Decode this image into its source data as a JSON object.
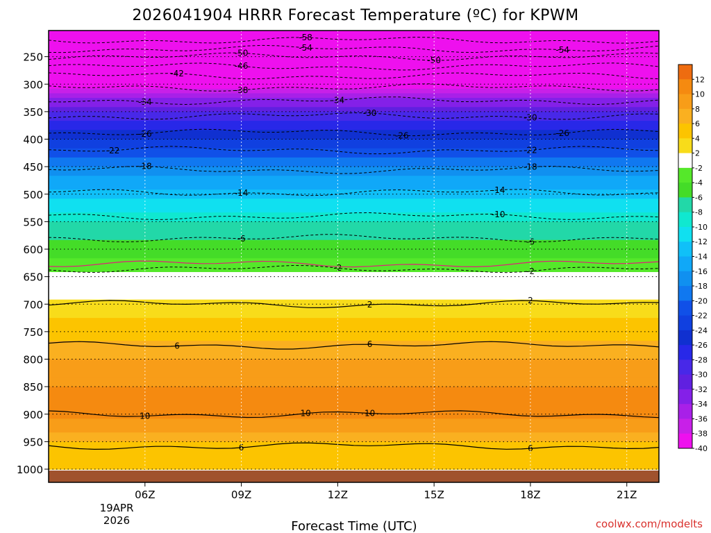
{
  "chart_data": {
    "type": "heatmap",
    "title": "2026041904 HRRR Forecast Temperature (ºC) for KPWM",
    "xlabel": "Forecast Time (UTC)",
    "credit": "coolwx.com/modelts",
    "x_ticks": [
      "06Z",
      "09Z",
      "12Z",
      "15Z",
      "18Z",
      "21Z"
    ],
    "x_tick_hours": [
      6,
      9,
      12,
      15,
      18,
      21
    ],
    "x_range_hours": [
      3.0,
      22.0
    ],
    "date_label": [
      "19APR",
      "2026"
    ],
    "y_ticks": [
      250,
      300,
      350,
      400,
      450,
      500,
      550,
      600,
      650,
      700,
      750,
      800,
      850,
      900,
      950,
      1000
    ],
    "y_range_hPa": [
      200,
      1025
    ],
    "ground_color": "#a0522d",
    "colorbar": {
      "levels": [
        14,
        12,
        10,
        8,
        6,
        4,
        2,
        -2,
        -4,
        -6,
        -8,
        -10,
        -12,
        -14,
        -16,
        -18,
        -20,
        -22,
        -24,
        -26,
        -28,
        -30,
        -32,
        -34,
        -36,
        -38,
        -40
      ],
      "labels": [
        "12",
        "10",
        "8",
        "6",
        "4",
        "2",
        "-2",
        "-4",
        "-6",
        "-8",
        "-10",
        "-12",
        "-14",
        "-16",
        "-18",
        "-20",
        "-22",
        "-24",
        "-26",
        "-28",
        "-30",
        "-32",
        "-34",
        "-36",
        "-38",
        "-40"
      ],
      "colors": [
        "#ee6c10",
        "#f58a10",
        "#f89d18",
        "#fab020",
        "#fcc400",
        "#f8dc1a",
        "#ffffff",
        "#55e82a",
        "#44dc28",
        "#22d8a8",
        "#10e8d0",
        "#10e0f0",
        "#10c0f8",
        "#10a8f8",
        "#1090f0",
        "#1078f0",
        "#1050e8",
        "#1040e0",
        "#1030d0",
        "#2828e8",
        "#4828e8",
        "#6020e0",
        "#8420e8",
        "#a820e8",
        "#c820e8",
        "#ee10ee"
      ]
    },
    "temperature_layers": [
      {
        "p": 200,
        "t": -62
      },
      {
        "p": 250,
        "t": -50
      },
      {
        "p": 300,
        "t": -39
      },
      {
        "p": 350,
        "t": -30
      },
      {
        "p": 400,
        "t": -24
      },
      {
        "p": 450,
        "t": -18
      },
      {
        "p": 500,
        "t": -13
      },
      {
        "p": 550,
        "t": -8
      },
      {
        "p": 600,
        "t": -5
      },
      {
        "p": 650,
        "t": -1
      },
      {
        "p": 700,
        "t": 3
      },
      {
        "p": 750,
        "t": 5
      },
      {
        "p": 800,
        "t": 8
      },
      {
        "p": 850,
        "t": 10
      },
      {
        "p": 900,
        "t": 11
      },
      {
        "p": 950,
        "t": 6
      },
      {
        "p": 1000,
        "t": 5
      }
    ],
    "contours": [
      {
        "value": -58,
        "label": "-58",
        "p": 220,
        "style": "dashed",
        "color": "#000000",
        "label_hours": [
          11.0
        ]
      },
      {
        "value": -54,
        "label": "-54",
        "p": 236,
        "style": "dashed",
        "color": "#000000",
        "label_hours": [
          11.0,
          19.0
        ]
      },
      {
        "value": -50,
        "label": "-50",
        "p": 250,
        "style": "dashed",
        "color": "#000000",
        "label_hours": [
          9.0,
          15.0
        ]
      },
      {
        "value": -46,
        "label": "-46",
        "p": 268,
        "style": "dashed",
        "color": "#000000",
        "label_hours": [
          9.0
        ]
      },
      {
        "value": -42,
        "label": "-42",
        "p": 285,
        "style": "dashed",
        "color": "#000000",
        "label_hours": [
          7.0
        ]
      },
      {
        "value": -38,
        "label": "-38",
        "p": 306,
        "style": "dashed",
        "color": "#000000",
        "label_hours": [
          9.0
        ]
      },
      {
        "value": -34,
        "label": "-34",
        "p": 330,
        "style": "dashed",
        "color": "#000000",
        "label_hours": [
          6.0,
          12.0
        ]
      },
      {
        "value": -30,
        "label": "-30",
        "p": 358,
        "style": "dashed",
        "color": "#000000",
        "label_hours": [
          13.0,
          18.0
        ]
      },
      {
        "value": -26,
        "label": "-26",
        "p": 388,
        "style": "dashed",
        "color": "#000000",
        "label_hours": [
          6.0,
          14.0,
          19.0
        ]
      },
      {
        "value": -22,
        "label": "-22",
        "p": 420,
        "style": "dashed",
        "color": "#000000",
        "label_hours": [
          5.0,
          18.0
        ]
      },
      {
        "value": -18,
        "label": "-18",
        "p": 456,
        "style": "dashed",
        "color": "#000000",
        "label_hours": [
          6.0,
          18.0
        ]
      },
      {
        "value": -14,
        "label": "-14",
        "p": 497,
        "style": "dashed",
        "color": "#000000",
        "label_hours": [
          9.0,
          17.0
        ]
      },
      {
        "value": -10,
        "label": "-10",
        "p": 540,
        "style": "dashed",
        "color": "#000000",
        "label_hours": [
          17.0
        ]
      },
      {
        "value": -6,
        "label": "-6",
        "p": 580,
        "style": "dashed",
        "color": "#000000",
        "label_hours": [
          9.0,
          18.0
        ]
      },
      {
        "value": -2,
        "label": "-2",
        "p": 636,
        "style": "dashed",
        "color": "#000000",
        "label_hours": [
          12.0,
          18.0
        ]
      },
      {
        "value": 0,
        "label": "",
        "p": 627,
        "style": "solid",
        "color": "#e0207a",
        "label_hours": []
      },
      {
        "value": 2,
        "label": "2",
        "p": 700,
        "style": "solid",
        "color": "#000000",
        "label_hours": [
          13.0,
          18.0
        ]
      },
      {
        "value": 6,
        "label": "6",
        "p": 775,
        "style": "solid",
        "color": "#000000",
        "label_hours": [
          7.0,
          13.0
        ]
      },
      {
        "value": 10,
        "label": "10",
        "p": 900,
        "style": "solid",
        "color": "#000000",
        "label_hours": [
          6.0,
          11.0,
          13.0
        ]
      },
      {
        "value": 6,
        "label": "6",
        "p": 958,
        "style": "solid",
        "color": "#000000",
        "label_hours": [
          9.0,
          18.0
        ]
      }
    ]
  }
}
